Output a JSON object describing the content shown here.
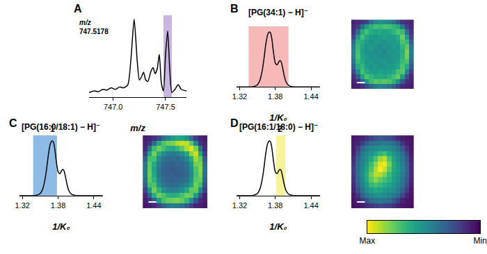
{
  "chart_data": [
    {
      "type": "line",
      "panel_label": "A",
      "annotations": [
        {
          "text": "m/z"
        },
        {
          "text": "747.5178"
        }
      ],
      "x_label": "m/z",
      "x": [
        746.77,
        746.82,
        746.86,
        746.9,
        746.94,
        746.98,
        747.02,
        747.06,
        747.1,
        747.14,
        747.17,
        747.2,
        747.23,
        747.25,
        747.27,
        747.29,
        747.31,
        747.33,
        747.36,
        747.38,
        747.4,
        747.42,
        747.44,
        747.46,
        747.48,
        747.5,
        747.52,
        747.54,
        747.56,
        747.59,
        747.62,
        747.65,
        747.7
      ],
      "values": [
        0.06,
        0.08,
        0.07,
        0.1,
        0.09,
        0.12,
        0.1,
        0.13,
        0.12,
        0.16,
        0.5,
        1.0,
        0.45,
        0.22,
        0.26,
        0.32,
        0.22,
        0.2,
        0.33,
        0.38,
        0.3,
        0.36,
        0.55,
        0.18,
        0.08,
        0.55,
        0.85,
        0.35,
        0.06,
        0.1,
        0.16,
        0.1,
        0.08
      ],
      "color": "#000000",
      "xlim": [
        746.77,
        747.7
      ],
      "xticks": [
        {
          "value": 747,
          "label": "747.0"
        },
        747.5
      ],
      "ylim": [
        0,
        1.05
      ],
      "yticks": [],
      "tick_labels": "x",
      "band": {
        "range": [
          747.48,
          747.56
        ],
        "color": "#c8b6e2"
      }
    },
    {
      "type": "line",
      "panel_label": "B",
      "title": "[PG(34:1) − H]⁻",
      "x_label": "1/K₀",
      "x": [
        1.315,
        1.32,
        1.33,
        1.34,
        1.345,
        1.35,
        1.354,
        1.358,
        1.361,
        1.364,
        1.367,
        1.37,
        1.372,
        1.374,
        1.377,
        1.38,
        1.383,
        1.386,
        1.388,
        1.39,
        1.392,
        1.395,
        1.398,
        1.402,
        1.406,
        1.412,
        1.42,
        1.44,
        1.455
      ],
      "values": [
        0,
        0,
        0,
        0,
        0.01,
        0.04,
        0.12,
        0.3,
        0.52,
        0.78,
        0.95,
        1.0,
        0.98,
        0.88,
        0.62,
        0.43,
        0.4,
        0.46,
        0.48,
        0.45,
        0.36,
        0.2,
        0.09,
        0.03,
        0.01,
        0,
        0,
        0,
        0
      ],
      "color": "#000000",
      "xlim": [
        1.315,
        1.455
      ],
      "xticks": [
        1.32,
        1.38,
        1.44
      ],
      "ylim": [
        0,
        1.1
      ],
      "yticks": [],
      "tick_labels": "x",
      "band": {
        "range": [
          1.335,
          1.402
        ],
        "color": "#f7b8b8"
      },
      "image": {
        "type": "heatmap",
        "cells": [
          [
            0.1,
            0.12,
            0.15,
            0.2,
            0.35,
            0.45,
            0.5,
            0.48,
            0.45,
            0.38,
            0.25,
            0.15,
            0.12,
            0.1
          ],
          [
            0.12,
            0.18,
            0.35,
            0.55,
            0.65,
            0.7,
            0.68,
            0.72,
            0.7,
            0.66,
            0.6,
            0.4,
            0.18,
            0.12
          ],
          [
            0.15,
            0.35,
            0.62,
            0.7,
            0.62,
            0.58,
            0.6,
            0.57,
            0.6,
            0.65,
            0.72,
            0.68,
            0.35,
            0.15
          ],
          [
            0.22,
            0.55,
            0.7,
            0.6,
            0.55,
            0.52,
            0.55,
            0.58,
            0.54,
            0.56,
            0.62,
            0.78,
            0.55,
            0.2
          ],
          [
            0.35,
            0.65,
            0.62,
            0.55,
            0.5,
            0.55,
            0.52,
            0.5,
            0.55,
            0.52,
            0.58,
            0.72,
            0.68,
            0.3
          ],
          [
            0.42,
            0.68,
            0.58,
            0.52,
            0.55,
            0.5,
            0.48,
            0.52,
            0.5,
            0.55,
            0.52,
            0.66,
            0.75,
            0.38
          ],
          [
            0.45,
            0.7,
            0.56,
            0.5,
            0.52,
            0.48,
            0.5,
            0.46,
            0.52,
            0.5,
            0.55,
            0.62,
            0.8,
            0.42
          ],
          [
            0.44,
            0.72,
            0.58,
            0.54,
            0.5,
            0.52,
            0.48,
            0.5,
            0.48,
            0.53,
            0.52,
            0.64,
            0.78,
            0.4
          ],
          [
            0.4,
            0.68,
            0.6,
            0.52,
            0.55,
            0.5,
            0.52,
            0.55,
            0.5,
            0.52,
            0.56,
            0.68,
            0.72,
            0.35
          ],
          [
            0.32,
            0.62,
            0.66,
            0.56,
            0.52,
            0.55,
            0.5,
            0.52,
            0.54,
            0.55,
            0.6,
            0.72,
            0.62,
            0.28
          ],
          [
            0.22,
            0.48,
            0.7,
            0.62,
            0.56,
            0.54,
            0.58,
            0.55,
            0.57,
            0.6,
            0.7,
            0.74,
            0.45,
            0.18
          ],
          [
            0.14,
            0.3,
            0.58,
            0.72,
            0.66,
            0.6,
            0.62,
            0.6,
            0.64,
            0.7,
            0.76,
            0.55,
            0.25,
            0.12
          ],
          [
            0.1,
            0.15,
            0.3,
            0.52,
            0.68,
            0.74,
            0.72,
            0.75,
            0.72,
            0.65,
            0.48,
            0.28,
            0.14,
            0.1
          ],
          [
            0.08,
            0.1,
            0.14,
            0.22,
            0.32,
            0.4,
            0.44,
            0.42,
            0.38,
            0.3,
            0.2,
            0.12,
            0.1,
            0.08
          ]
        ]
      }
    },
    {
      "type": "line",
      "panel_label": "C",
      "title": "[PG(16:0/18:1) − H]⁻",
      "x_label": "1/K₀",
      "annotations": [
        {
          "text": "1",
          "x": 1.371
        }
      ],
      "x": [
        1.315,
        1.32,
        1.33,
        1.34,
        1.345,
        1.35,
        1.354,
        1.358,
        1.361,
        1.364,
        1.367,
        1.37,
        1.372,
        1.374,
        1.377,
        1.38,
        1.383,
        1.386,
        1.388,
        1.39,
        1.392,
        1.395,
        1.398,
        1.402,
        1.406,
        1.412,
        1.42,
        1.44,
        1.455
      ],
      "values": [
        0,
        0,
        0,
        0,
        0.01,
        0.04,
        0.12,
        0.3,
        0.52,
        0.78,
        0.95,
        1.0,
        0.98,
        0.88,
        0.62,
        0.43,
        0.4,
        0.46,
        0.48,
        0.45,
        0.36,
        0.2,
        0.09,
        0.03,
        0.01,
        0,
        0,
        0,
        0
      ],
      "color": "#000000",
      "xlim": [
        1.315,
        1.455
      ],
      "xticks": [
        1.32,
        1.38,
        1.44
      ],
      "ylim": [
        0,
        1.1
      ],
      "yticks": [],
      "tick_labels": "x",
      "band": {
        "range": [
          1.338,
          1.378
        ],
        "color": "#8dbbe6"
      },
      "image": {
        "type": "heatmap",
        "cells": [
          [
            0.08,
            0.1,
            0.14,
            0.22,
            0.35,
            0.45,
            0.55,
            0.6,
            0.58,
            0.5,
            0.35,
            0.18,
            0.1,
            0.08
          ],
          [
            0.1,
            0.15,
            0.35,
            0.6,
            0.72,
            0.78,
            0.8,
            0.88,
            0.92,
            0.9,
            0.75,
            0.45,
            0.15,
            0.1
          ],
          [
            0.12,
            0.35,
            0.68,
            0.78,
            0.7,
            0.62,
            0.6,
            0.66,
            0.75,
            0.88,
            0.95,
            0.8,
            0.38,
            0.12
          ],
          [
            0.2,
            0.58,
            0.78,
            0.62,
            0.48,
            0.42,
            0.4,
            0.42,
            0.48,
            0.6,
            0.82,
            0.92,
            0.6,
            0.18
          ],
          [
            0.3,
            0.7,
            0.7,
            0.48,
            0.38,
            0.35,
            0.36,
            0.34,
            0.38,
            0.45,
            0.62,
            0.85,
            0.75,
            0.28
          ],
          [
            0.38,
            0.75,
            0.62,
            0.42,
            0.34,
            0.32,
            0.3,
            0.33,
            0.32,
            0.38,
            0.52,
            0.78,
            0.8,
            0.35
          ],
          [
            0.4,
            0.76,
            0.58,
            0.4,
            0.32,
            0.3,
            0.28,
            0.3,
            0.32,
            0.35,
            0.48,
            0.72,
            0.82,
            0.38
          ],
          [
            0.4,
            0.78,
            0.6,
            0.4,
            0.33,
            0.3,
            0.3,
            0.28,
            0.3,
            0.34,
            0.46,
            0.7,
            0.8,
            0.36
          ],
          [
            0.36,
            0.76,
            0.64,
            0.44,
            0.35,
            0.32,
            0.31,
            0.33,
            0.34,
            0.38,
            0.5,
            0.74,
            0.76,
            0.32
          ],
          [
            0.3,
            0.7,
            0.72,
            0.5,
            0.4,
            0.36,
            0.35,
            0.36,
            0.4,
            0.45,
            0.58,
            0.78,
            0.68,
            0.26
          ],
          [
            0.2,
            0.52,
            0.78,
            0.65,
            0.5,
            0.44,
            0.42,
            0.44,
            0.5,
            0.6,
            0.75,
            0.76,
            0.48,
            0.18
          ],
          [
            0.12,
            0.3,
            0.62,
            0.78,
            0.72,
            0.64,
            0.62,
            0.64,
            0.7,
            0.78,
            0.76,
            0.55,
            0.25,
            0.1
          ],
          [
            0.08,
            0.14,
            0.3,
            0.55,
            0.7,
            0.76,
            0.78,
            0.8,
            0.76,
            0.66,
            0.48,
            0.26,
            0.12,
            0.08
          ],
          [
            0.06,
            0.08,
            0.12,
            0.2,
            0.3,
            0.38,
            0.42,
            0.4,
            0.36,
            0.28,
            0.18,
            0.1,
            0.08,
            0.06
          ]
        ]
      }
    },
    {
      "type": "line",
      "panel_label": "D",
      "title": "[PG(16:1/18:0) − H]⁻",
      "x_label": "1/K₀",
      "annotations": [
        {
          "text": "2",
          "x": 1.388
        }
      ],
      "x": [
        1.315,
        1.32,
        1.33,
        1.34,
        1.345,
        1.35,
        1.354,
        1.358,
        1.361,
        1.364,
        1.367,
        1.37,
        1.372,
        1.374,
        1.377,
        1.38,
        1.383,
        1.386,
        1.388,
        1.39,
        1.392,
        1.395,
        1.398,
        1.402,
        1.406,
        1.412,
        1.42,
        1.44,
        1.455
      ],
      "values": [
        0,
        0,
        0,
        0,
        0.01,
        0.04,
        0.12,
        0.3,
        0.52,
        0.78,
        0.95,
        1.0,
        0.98,
        0.88,
        0.62,
        0.43,
        0.4,
        0.46,
        0.48,
        0.45,
        0.36,
        0.2,
        0.09,
        0.03,
        0.01,
        0,
        0,
        0,
        0
      ],
      "color": "#000000",
      "xlim": [
        1.315,
        1.455
      ],
      "xticks": [
        1.32,
        1.38,
        1.44
      ],
      "ylim": [
        0,
        1.1
      ],
      "yticks": [],
      "tick_labels": "x",
      "band": {
        "range": [
          1.381,
          1.397
        ],
        "color": "#f7f39b"
      },
      "image": {
        "type": "heatmap",
        "cells": [
          [
            0.06,
            0.08,
            0.1,
            0.14,
            0.2,
            0.25,
            0.28,
            0.26,
            0.24,
            0.18,
            0.12,
            0.08,
            0.06,
            0.05
          ],
          [
            0.08,
            0.1,
            0.18,
            0.28,
            0.35,
            0.38,
            0.4,
            0.42,
            0.4,
            0.36,
            0.28,
            0.15,
            0.08,
            0.06
          ],
          [
            0.08,
            0.18,
            0.32,
            0.4,
            0.45,
            0.48,
            0.52,
            0.5,
            0.48,
            0.44,
            0.38,
            0.28,
            0.14,
            0.07
          ],
          [
            0.1,
            0.26,
            0.4,
            0.46,
            0.52,
            0.58,
            0.66,
            0.7,
            0.6,
            0.52,
            0.45,
            0.36,
            0.22,
            0.08
          ],
          [
            0.14,
            0.32,
            0.42,
            0.5,
            0.6,
            0.72,
            0.85,
            0.9,
            0.72,
            0.58,
            0.48,
            0.4,
            0.28,
            0.1
          ],
          [
            0.16,
            0.35,
            0.45,
            0.55,
            0.68,
            0.82,
            0.95,
            0.98,
            0.8,
            0.62,
            0.52,
            0.42,
            0.3,
            0.12
          ],
          [
            0.18,
            0.36,
            0.46,
            0.58,
            0.72,
            0.88,
            1.0,
            0.92,
            0.75,
            0.6,
            0.54,
            0.44,
            0.32,
            0.12
          ],
          [
            0.17,
            0.36,
            0.48,
            0.62,
            0.78,
            0.9,
            0.88,
            0.8,
            0.68,
            0.58,
            0.52,
            0.42,
            0.3,
            0.12
          ],
          [
            0.15,
            0.34,
            0.46,
            0.6,
            0.74,
            0.82,
            0.76,
            0.7,
            0.64,
            0.56,
            0.5,
            0.4,
            0.28,
            0.1
          ],
          [
            0.12,
            0.3,
            0.44,
            0.55,
            0.66,
            0.7,
            0.66,
            0.62,
            0.58,
            0.52,
            0.46,
            0.38,
            0.24,
            0.09
          ],
          [
            0.1,
            0.24,
            0.38,
            0.48,
            0.56,
            0.6,
            0.58,
            0.55,
            0.52,
            0.48,
            0.42,
            0.32,
            0.18,
            0.07
          ],
          [
            0.07,
            0.16,
            0.3,
            0.4,
            0.46,
            0.5,
            0.5,
            0.48,
            0.45,
            0.4,
            0.34,
            0.22,
            0.1,
            0.06
          ],
          [
            0.06,
            0.09,
            0.16,
            0.26,
            0.34,
            0.38,
            0.4,
            0.38,
            0.35,
            0.28,
            0.18,
            0.1,
            0.06,
            0.05
          ],
          [
            0.05,
            0.06,
            0.08,
            0.12,
            0.16,
            0.2,
            0.22,
            0.2,
            0.18,
            0.14,
            0.09,
            0.06,
            0.05,
            0.04
          ]
        ]
      }
    },
    {
      "type": "colorbar",
      "range": [
        1,
        0
      ],
      "ticks": [
        {
          "value": 1,
          "label": "Max"
        },
        {
          "value": 0,
          "label": "Min"
        }
      ]
    }
  ]
}
